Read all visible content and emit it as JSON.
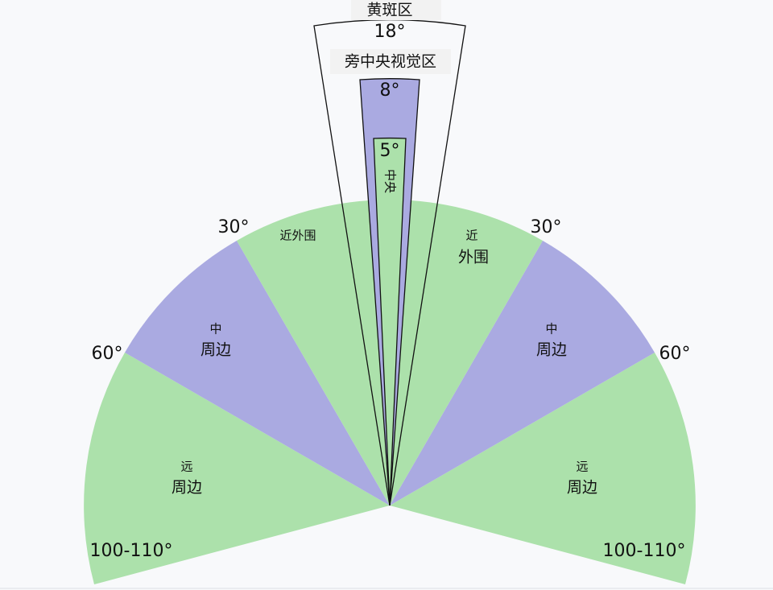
{
  "macula": {
    "label": "黄斑区",
    "angle": "18°"
  },
  "paracentral": {
    "label": "旁中央视觉区",
    "angle": "8°"
  },
  "central": {
    "label": "中央",
    "angle": "5°"
  },
  "near_peripheral": {
    "left": "近外围",
    "right": [
      "近",
      "外围"
    ],
    "left_angle": "30°",
    "right_angle": "30°"
  },
  "mid_peripheral": {
    "left": [
      "中",
      "周边"
    ],
    "right": [
      "中",
      "周边"
    ],
    "left_angle": "60°",
    "right_angle": "60°"
  },
  "far_peripheral": {
    "left": [
      "远",
      "周边"
    ],
    "right": [
      "远",
      "周边"
    ],
    "left_angle": "100-110°",
    "right_angle": "100-110°"
  }
}
